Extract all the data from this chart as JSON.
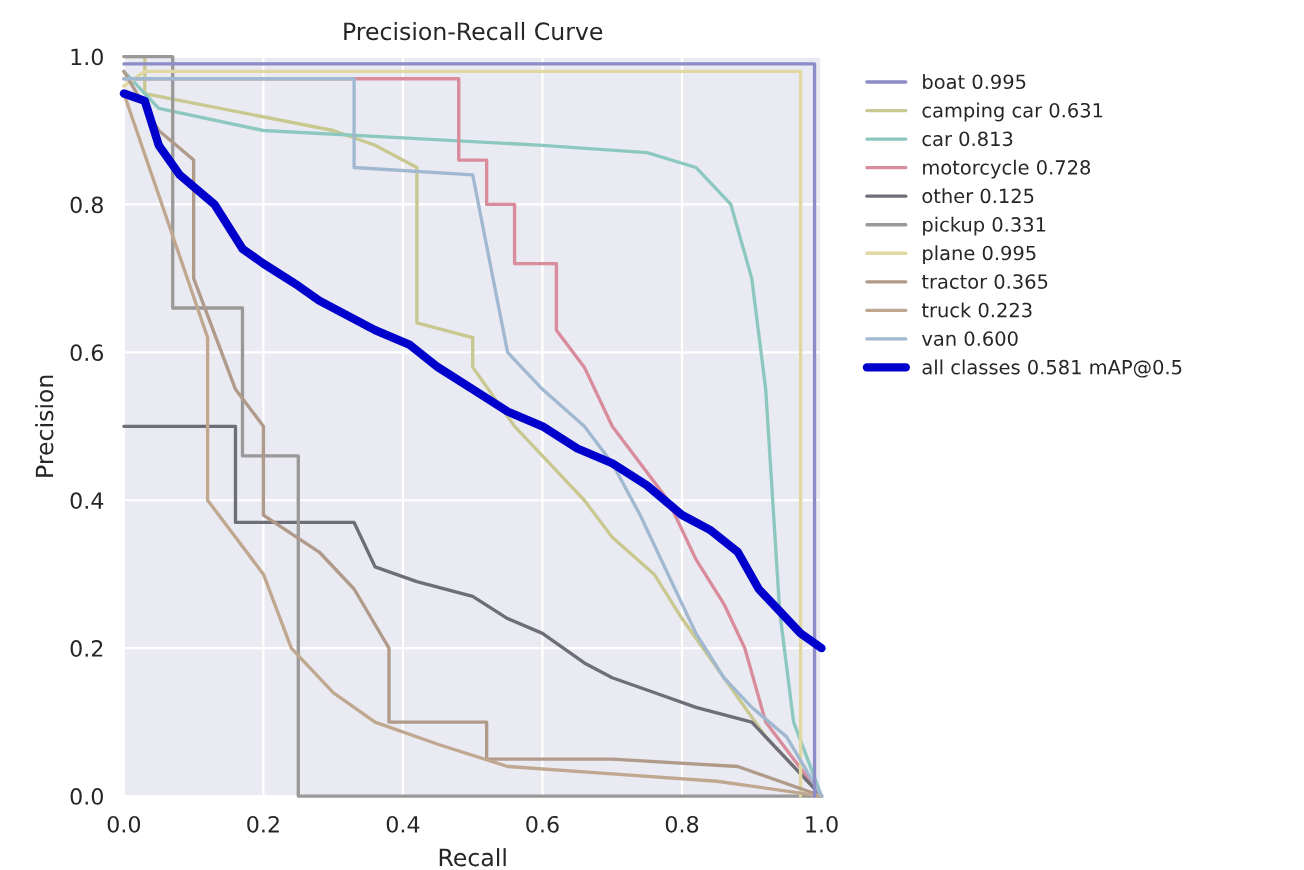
{
  "chart_data": {
    "type": "line",
    "title": "Precision-Recall Curve",
    "xlabel": "Recall",
    "ylabel": "Precision",
    "xlim": [
      0,
      1
    ],
    "ylim": [
      0,
      1
    ],
    "xticks": [
      {
        "value": 0,
        "label": "0.0"
      },
      0.2,
      0.4,
      0.6,
      0.8,
      {
        "value": 1,
        "label": "1.0"
      }
    ],
    "yticks": [
      {
        "value": 0,
        "label": "0.0"
      },
      0.2,
      0.4,
      0.6,
      0.8,
      {
        "value": 1,
        "label": "1.0"
      }
    ],
    "grid": true,
    "legend": "right",
    "marker": "none",
    "line_style": "solid",
    "series": [
      {
        "name": "boat 0.995",
        "color": "#8c8cc8",
        "x": [
          0,
          0.99,
          0.99
        ],
        "values": [
          0.99,
          0.99,
          0
        ]
      },
      {
        "name": "camping car 0.631",
        "color": "#c8c890",
        "x": [
          0,
          0.03,
          0.03,
          0.3,
          0.36,
          0.42,
          0.42,
          0.5,
          0.5,
          0.56,
          0.6,
          0.66,
          0.7,
          0.76,
          0.8,
          0.86,
          0.92,
          1
        ],
        "values": [
          1,
          1,
          0.95,
          0.9,
          0.88,
          0.85,
          0.64,
          0.62,
          0.58,
          0.5,
          0.46,
          0.4,
          0.35,
          0.3,
          0.24,
          0.16,
          0.08,
          0
        ]
      },
      {
        "name": "car 0.813",
        "color": "#8cc8c0",
        "x": [
          0,
          0.05,
          0.2,
          0.4,
          0.6,
          0.75,
          0.82,
          0.87,
          0.9,
          0.92,
          0.93,
          0.94,
          0.96,
          1
        ],
        "values": [
          0.98,
          0.93,
          0.9,
          0.89,
          0.88,
          0.87,
          0.85,
          0.8,
          0.7,
          0.55,
          0.4,
          0.25,
          0.1,
          0
        ]
      },
      {
        "name": "motorcycle 0.728",
        "color": "#d88c9c",
        "x": [
          0,
          0.48,
          0.48,
          0.52,
          0.52,
          0.56,
          0.56,
          0.62,
          0.62,
          0.66,
          0.7,
          0.74,
          0.78,
          0.82,
          0.86,
          0.89,
          0.92,
          1
        ],
        "values": [
          0.97,
          0.97,
          0.86,
          0.86,
          0.8,
          0.8,
          0.72,
          0.72,
          0.63,
          0.58,
          0.5,
          0.45,
          0.4,
          0.32,
          0.26,
          0.2,
          0.1,
          0
        ]
      },
      {
        "name": "other 0.125",
        "color": "#6e6e78",
        "x": [
          0,
          0.16,
          0.16,
          0.33,
          0.36,
          0.42,
          0.5,
          0.55,
          0.6,
          0.66,
          0.7,
          0.76,
          0.82,
          0.9,
          1
        ],
        "values": [
          0.5,
          0.5,
          0.37,
          0.37,
          0.31,
          0.29,
          0.27,
          0.24,
          0.22,
          0.18,
          0.16,
          0.14,
          0.12,
          0.1,
          0
        ]
      },
      {
        "name": "pickup 0.331",
        "color": "#999999",
        "x": [
          0,
          0.07,
          0.07,
          0.17,
          0.17,
          0.25,
          0.25,
          0.53,
          0.53,
          0.9,
          1
        ],
        "values": [
          1,
          1,
          0.66,
          0.66,
          0.46,
          0.46,
          0.0,
          0.0,
          0.0,
          0.0,
          0
        ]
      },
      {
        "name": "plane 0.995",
        "color": "#e0d8a0",
        "x": [
          0,
          0.03,
          0.97,
          0.97
        ],
        "values": [
          0.96,
          0.98,
          0.98,
          0
        ]
      },
      {
        "name": "tractor 0.365",
        "color": "#b09a8a",
        "x": [
          0,
          0.05,
          0.1,
          0.1,
          0.16,
          0.2,
          0.2,
          0.28,
          0.33,
          0.38,
          0.38,
          0.52,
          0.52,
          0.7,
          0.88,
          1
        ],
        "values": [
          0.98,
          0.9,
          0.86,
          0.7,
          0.55,
          0.5,
          0.38,
          0.33,
          0.28,
          0.2,
          0.1,
          0.1,
          0.05,
          0.05,
          0.04,
          0
        ]
      },
      {
        "name": "truck 0.223",
        "color": "#c0a890",
        "x": [
          0,
          0.12,
          0.12,
          0.2,
          0.24,
          0.3,
          0.36,
          0.45,
          0.55,
          0.7,
          0.85,
          1
        ],
        "values": [
          0.95,
          0.62,
          0.4,
          0.3,
          0.2,
          0.14,
          0.1,
          0.07,
          0.04,
          0.03,
          0.02,
          0
        ]
      },
      {
        "name": "van 0.600",
        "color": "#a0b8d0",
        "x": [
          0,
          0.33,
          0.33,
          0.5,
          0.55,
          0.6,
          0.66,
          0.7,
          0.74,
          0.78,
          0.82,
          0.86,
          0.9,
          0.95,
          1
        ],
        "values": [
          0.97,
          0.97,
          0.85,
          0.84,
          0.6,
          0.55,
          0.5,
          0.45,
          0.38,
          0.3,
          0.22,
          0.16,
          0.12,
          0.08,
          0
        ]
      },
      {
        "name": "all classes 0.581 mAP@0.5",
        "color": "#0000cc",
        "x": [
          0,
          0.03,
          0.05,
          0.08,
          0.13,
          0.17,
          0.2,
          0.25,
          0.28,
          0.32,
          0.36,
          0.41,
          0.45,
          0.5,
          0.55,
          0.6,
          0.65,
          0.7,
          0.75,
          0.8,
          0.84,
          0.88,
          0.91,
          0.94,
          0.97,
          1
        ],
        "values": [
          0.95,
          0.94,
          0.88,
          0.84,
          0.8,
          0.74,
          0.72,
          0.69,
          0.67,
          0.65,
          0.63,
          0.61,
          0.58,
          0.55,
          0.52,
          0.5,
          0.47,
          0.45,
          0.42,
          0.38,
          0.36,
          0.33,
          0.28,
          0.25,
          0.22,
          0.2
        ]
      }
    ]
  }
}
